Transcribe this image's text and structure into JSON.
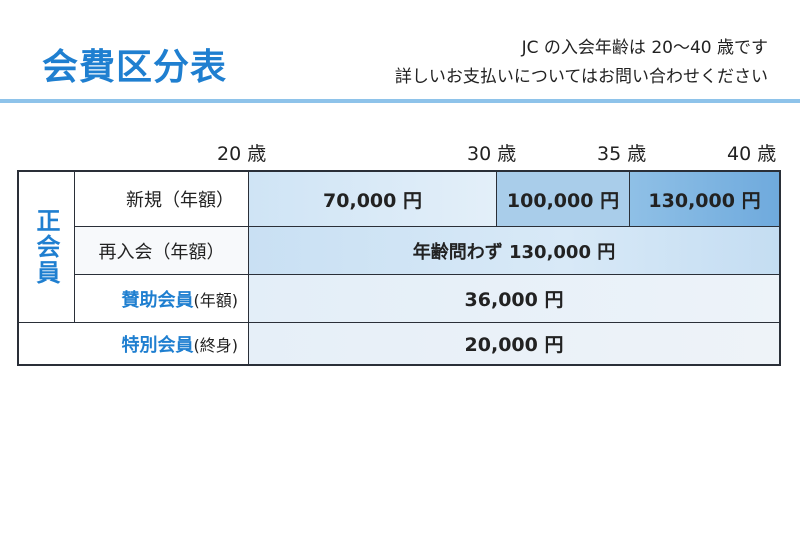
{
  "header": {
    "title": "会費区分表",
    "note_line1": "JC の入会年齢は 20〜40 歳です",
    "note_line2": "詳しいお支払いについてはお問い合わせください"
  },
  "age_markers": [
    "20 歳",
    "30 歳",
    "35 歳",
    "40 歳"
  ],
  "table": {
    "group_label": "正会員",
    "rows": {
      "new": {
        "label": "新規（年額）",
        "values": [
          "70,000 円",
          "100,000 円",
          "130,000 円"
        ]
      },
      "rejoin": {
        "label": "再入会（年額）",
        "value": "年齢問わず 130,000 円"
      },
      "supporting": {
        "label": "賛助会員",
        "suffix": "(年額)",
        "value": "36,000 円"
      },
      "special": {
        "label": "特別会員",
        "suffix": "(終身)",
        "value": "20,000 円"
      }
    }
  },
  "colors": {
    "accent": "#1f7fd0",
    "rule": "#8ec3ea",
    "cell_light": "#dcebf7",
    "cell_mid": "#a9cdea",
    "cell_dark": "#7fb4e2"
  }
}
